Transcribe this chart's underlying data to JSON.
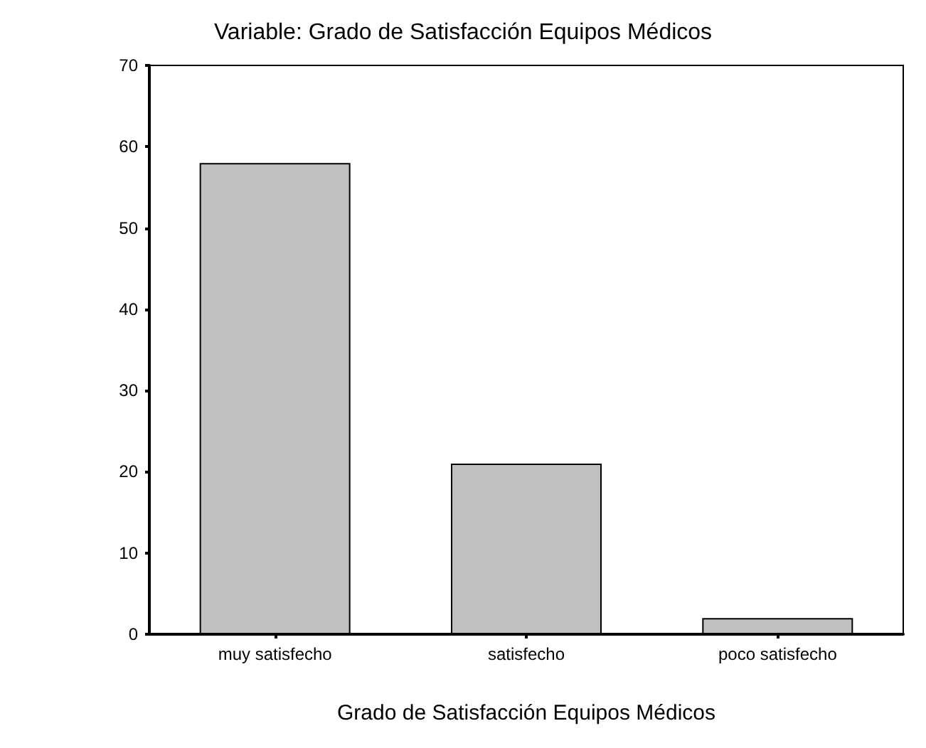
{
  "chart_data": {
    "type": "bar",
    "title": "Variable: Grado de Satisfacción Equipos Médicos",
    "xlabel": "Grado de Satisfacción Equipos Médicos",
    "categories": [
      "muy satisfecho",
      "satisfecho",
      "poco satisfecho"
    ],
    "values": [
      58,
      21,
      2
    ],
    "color": "#c0c0c0",
    "ylim": [
      0,
      70
    ],
    "yticks": [
      0,
      10,
      20,
      30,
      40,
      50,
      60,
      70
    ],
    "grid": false
  }
}
